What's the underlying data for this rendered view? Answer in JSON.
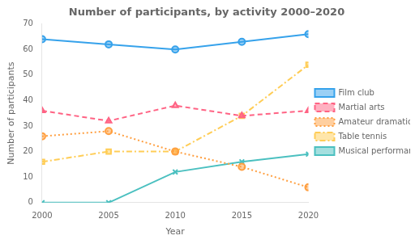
{
  "chart_data": {
    "type": "line",
    "title": "Number of participants, by activity 2000–2020",
    "xlabel": "Year",
    "ylabel": "Number of participants",
    "x": [
      2000,
      2005,
      2010,
      2015,
      2020
    ],
    "series": [
      {
        "name": "Film club",
        "values": [
          64,
          62,
          60,
          63,
          66
        ],
        "marker": "circle",
        "line_style": "solid"
      },
      {
        "name": "Martial arts",
        "values": [
          36,
          32,
          38,
          34,
          36
        ],
        "marker": "triangle",
        "line_style": "dashed"
      },
      {
        "name": "Amateur dramatics",
        "values": [
          26,
          28,
          20,
          14,
          6
        ],
        "marker": "circle",
        "line_style": "dotted"
      },
      {
        "name": "Table tennis",
        "values": [
          16,
          20,
          20,
          34,
          54
        ],
        "marker": "square",
        "line_style": "dashdot"
      },
      {
        "name": "Musical performances",
        "values": [
          0,
          0,
          12,
          16,
          19
        ],
        "marker": "x",
        "line_style": "solid"
      }
    ],
    "xlim": [
      2000,
      2020
    ],
    "xticks": [
      2000,
      2005,
      2010,
      2015,
      2020
    ],
    "ylim": [
      0,
      70
    ],
    "yticks": [
      0,
      10,
      20,
      30,
      40,
      50,
      60,
      70
    ],
    "grid": false,
    "legend": "right"
  }
}
